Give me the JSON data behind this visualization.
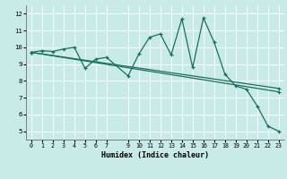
{
  "xlabel": "Humidex (Indice chaleur)",
  "bg_color": "#c8ebe8",
  "grid_color": "#ffffff",
  "line_color": "#1a6e60",
  "xmin": -0.5,
  "xmax": 23.5,
  "ymin": 4.5,
  "ymax": 12.5,
  "yticks": [
    5,
    6,
    7,
    8,
    9,
    10,
    11,
    12
  ],
  "xticks": [
    0,
    1,
    2,
    3,
    4,
    5,
    6,
    7,
    9,
    10,
    11,
    12,
    13,
    14,
    15,
    16,
    17,
    18,
    19,
    20,
    21,
    22,
    23
  ],
  "line1_x": [
    0,
    1,
    2,
    3,
    4,
    5,
    6,
    7,
    9,
    10,
    11,
    12,
    13,
    14,
    15,
    16,
    17,
    18,
    19,
    20,
    21,
    22,
    23
  ],
  "line1_y": [
    9.7,
    9.8,
    9.75,
    9.9,
    10.0,
    8.75,
    9.3,
    9.4,
    8.3,
    9.6,
    10.6,
    10.8,
    9.55,
    11.7,
    8.8,
    11.75,
    10.3,
    8.4,
    7.7,
    7.5,
    6.5,
    5.3,
    5.0
  ],
  "line2_x": [
    0,
    23
  ],
  "line2_y": [
    9.7,
    7.55
  ],
  "line3_x": [
    0,
    23
  ],
  "line3_y": [
    9.7,
    7.35
  ]
}
